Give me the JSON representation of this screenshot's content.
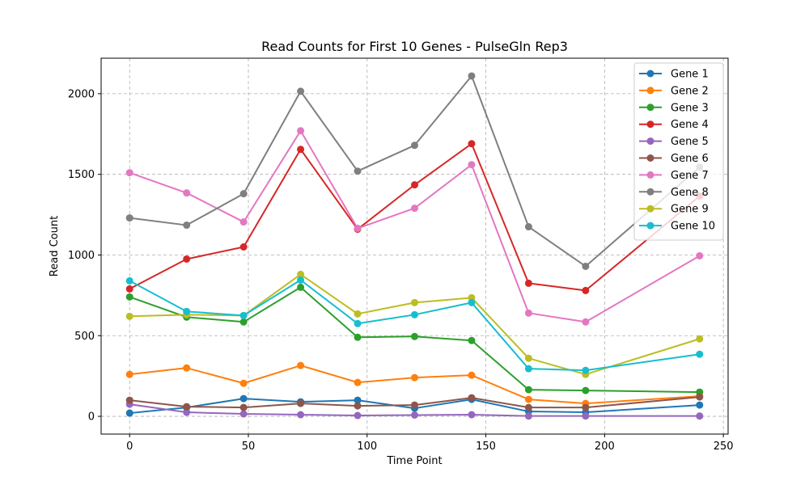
{
  "chart_data": {
    "type": "line",
    "title": "Read Counts for First 10 Genes - PulseGln Rep3",
    "xlabel": "Time Point",
    "ylabel": "Read Count",
    "xlim": [
      -12,
      252
    ],
    "ylim": [
      -110,
      2220
    ],
    "x_ticks": [
      0,
      50,
      100,
      150,
      200,
      250
    ],
    "y_ticks": [
      0,
      500,
      1000,
      1500,
      2000
    ],
    "grid": true,
    "legend_position": "top-right",
    "x": [
      0,
      24,
      48,
      72,
      96,
      120,
      144,
      168,
      192,
      240
    ],
    "series": [
      {
        "name": "Gene 1",
        "color": "#1f77b4",
        "values": [
          20,
          55,
          110,
          90,
          100,
          50,
          105,
          30,
          25,
          70
        ]
      },
      {
        "name": "Gene 2",
        "color": "#ff7f0e",
        "values": [
          260,
          300,
          205,
          315,
          210,
          240,
          255,
          105,
          80,
          125
        ]
      },
      {
        "name": "Gene 3",
        "color": "#2ca02c",
        "values": [
          740,
          615,
          585,
          800,
          490,
          495,
          470,
          165,
          160,
          150
        ]
      },
      {
        "name": "Gene 4",
        "color": "#d62728",
        "values": [
          790,
          975,
          1050,
          1655,
          1160,
          1435,
          1690,
          825,
          780,
          1365
        ]
      },
      {
        "name": "Gene 5",
        "color": "#9467bd",
        "values": [
          75,
          25,
          15,
          10,
          5,
          8,
          10,
          2,
          2,
          2
        ]
      },
      {
        "name": "Gene 6",
        "color": "#8c564b",
        "values": [
          100,
          60,
          55,
          80,
          65,
          70,
          115,
          55,
          55,
          120
        ]
      },
      {
        "name": "Gene 7",
        "color": "#e377c2",
        "values": [
          1510,
          1385,
          1205,
          1770,
          1165,
          1290,
          1560,
          640,
          585,
          995
        ]
      },
      {
        "name": "Gene 8",
        "color": "#7f7f7f",
        "values": [
          1230,
          1185,
          1380,
          2015,
          1520,
          1680,
          2110,
          1175,
          930,
          1545
        ]
      },
      {
        "name": "Gene 9",
        "color": "#bcbd22",
        "values": [
          620,
          630,
          625,
          880,
          635,
          705,
          735,
          360,
          260,
          480
        ]
      },
      {
        "name": "Gene 10",
        "color": "#17becf",
        "values": [
          840,
          650,
          625,
          845,
          575,
          630,
          705,
          295,
          285,
          385
        ]
      }
    ]
  }
}
